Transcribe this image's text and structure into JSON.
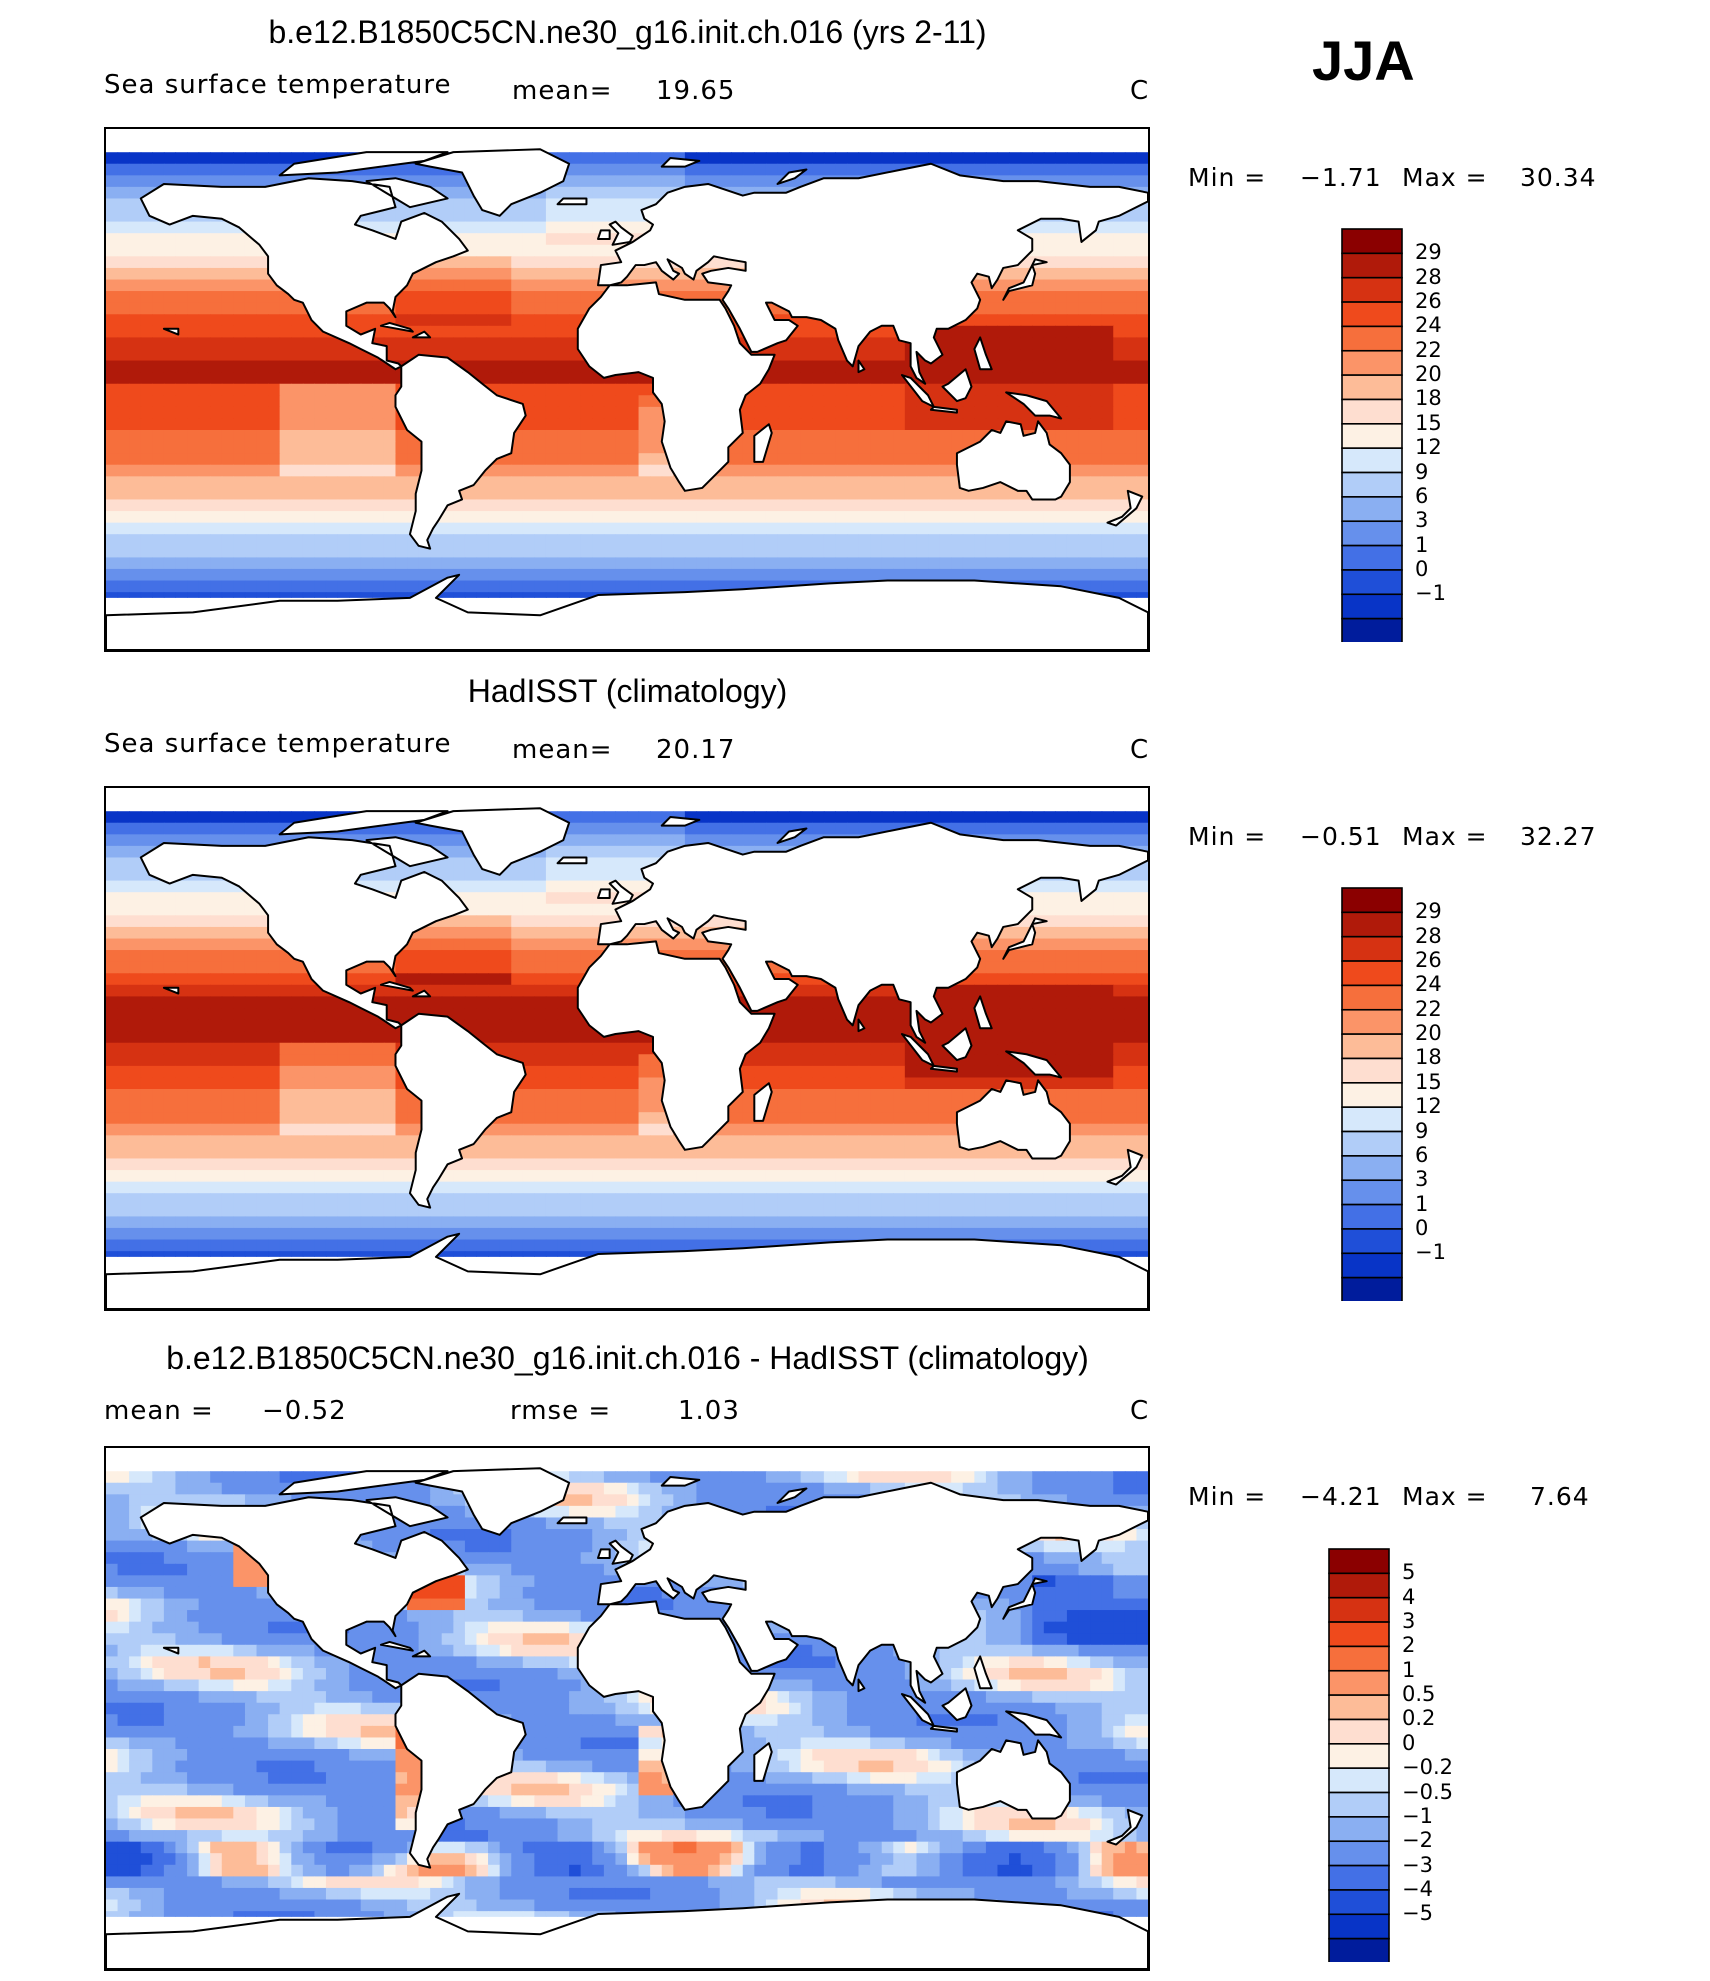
{
  "season": "JJA",
  "units_label": "C",
  "continent_color": "#ffffff",
  "panels": [
    {
      "id": "model",
      "title": "b.e12.B1850C5CN.ne30_g16.init.ch.016 (yrs 2-11)",
      "variable": "Sea surface temperature",
      "stat1_label": "mean=",
      "stat1_value": "19.65",
      "stat2_label": "",
      "stat2_value": "",
      "units": "C",
      "min_label": "Min =",
      "min_value": "−1.71",
      "max_label": "Max =",
      "max_value": "30.34",
      "colorbar_id": "sst"
    },
    {
      "id": "obs",
      "title": "HadISST (climatology)",
      "variable": "Sea surface temperature",
      "stat1_label": "mean=",
      "stat1_value": "20.17",
      "stat2_label": "",
      "stat2_value": "",
      "units": "C",
      "min_label": "Min =",
      "min_value": "−0.51",
      "max_label": "Max =",
      "max_value": "32.27",
      "colorbar_id": "sst"
    },
    {
      "id": "diff",
      "title": "b.e12.B1850C5CN.ne30_g16.init.ch.016 - HadISST (climatology)",
      "variable": "",
      "stat1_label": "mean =",
      "stat1_value": "−0.52",
      "stat2_label": "rmse =",
      "stat2_value": "1.03",
      "units": "C",
      "min_label": "Min =",
      "min_value": "−4.21",
      "max_label": "Max =",
      "max_value": "7.64",
      "colorbar_id": "diff"
    }
  ],
  "colorbars": {
    "sst": {
      "labels": [
        "29",
        "28",
        "26",
        "24",
        "22",
        "20",
        "18",
        "15",
        "12",
        "9",
        "6",
        "3",
        "1",
        "0",
        "−1"
      ],
      "colors": [
        "#8b0000",
        "#b01a0a",
        "#d63212",
        "#ef4a1c",
        "#f66f3c",
        "#fb9468",
        "#fdbc98",
        "#feded0",
        "#fdf1e4",
        "#d6e8fb",
        "#b1cdf8",
        "#8aaff2",
        "#6690ec",
        "#4370e6",
        "#1f4fd8",
        "#0834c7",
        "#001c9c"
      ]
    },
    "diff": {
      "labels": [
        "5",
        "4",
        "3",
        "2",
        "1",
        "0.5",
        "0.2",
        "0",
        "−0.2",
        "−0.5",
        "−1",
        "−2",
        "−3",
        "−4",
        "−5"
      ],
      "colors": [
        "#8b0000",
        "#b01a0a",
        "#d63212",
        "#ef4a1c",
        "#f66f3c",
        "#fb9468",
        "#fdbc98",
        "#feded0",
        "#fdf1e4",
        "#d6e8fb",
        "#b1cdf8",
        "#8aaff2",
        "#6690ec",
        "#4370e6",
        "#1f4fd8",
        "#0834c7",
        "#001c9c"
      ]
    }
  },
  "chart_data": [
    {
      "type": "heatmap",
      "title": "b.e12.B1850C5CN.ne30_g16.init.ch.016 (yrs 2-11)",
      "variable": "Sea surface temperature",
      "units": "C",
      "mean": 19.65,
      "min": -1.71,
      "max": 30.34,
      "contour_levels": [
        -1,
        0,
        1,
        3,
        6,
        9,
        12,
        15,
        18,
        20,
        22,
        24,
        26,
        28,
        29
      ],
      "projection": "cylindrical equidistant, global",
      "xlim": [
        -180,
        180
      ],
      "ylim": [
        -90,
        90
      ]
    },
    {
      "type": "heatmap",
      "title": "HadISST (climatology)",
      "variable": "Sea surface temperature",
      "units": "C",
      "mean": 20.17,
      "min": -0.51,
      "max": 32.27,
      "contour_levels": [
        -1,
        0,
        1,
        3,
        6,
        9,
        12,
        15,
        18,
        20,
        22,
        24,
        26,
        28,
        29
      ],
      "projection": "cylindrical equidistant, global",
      "xlim": [
        -180,
        180
      ],
      "ylim": [
        -90,
        90
      ]
    },
    {
      "type": "heatmap",
      "title": "b.e12.B1850C5CN.ne30_g16.init.ch.016 - HadISST (climatology)",
      "units": "C",
      "mean": -0.52,
      "rmse": 1.03,
      "min": -4.21,
      "max": 7.64,
      "contour_levels": [
        -5,
        -4,
        -3,
        -2,
        -1,
        -0.5,
        -0.2,
        0,
        0.2,
        0.5,
        1,
        2,
        3,
        4,
        5
      ],
      "projection": "cylindrical equidistant, global",
      "xlim": [
        -180,
        180
      ],
      "ylim": [
        -90,
        90
      ]
    }
  ]
}
